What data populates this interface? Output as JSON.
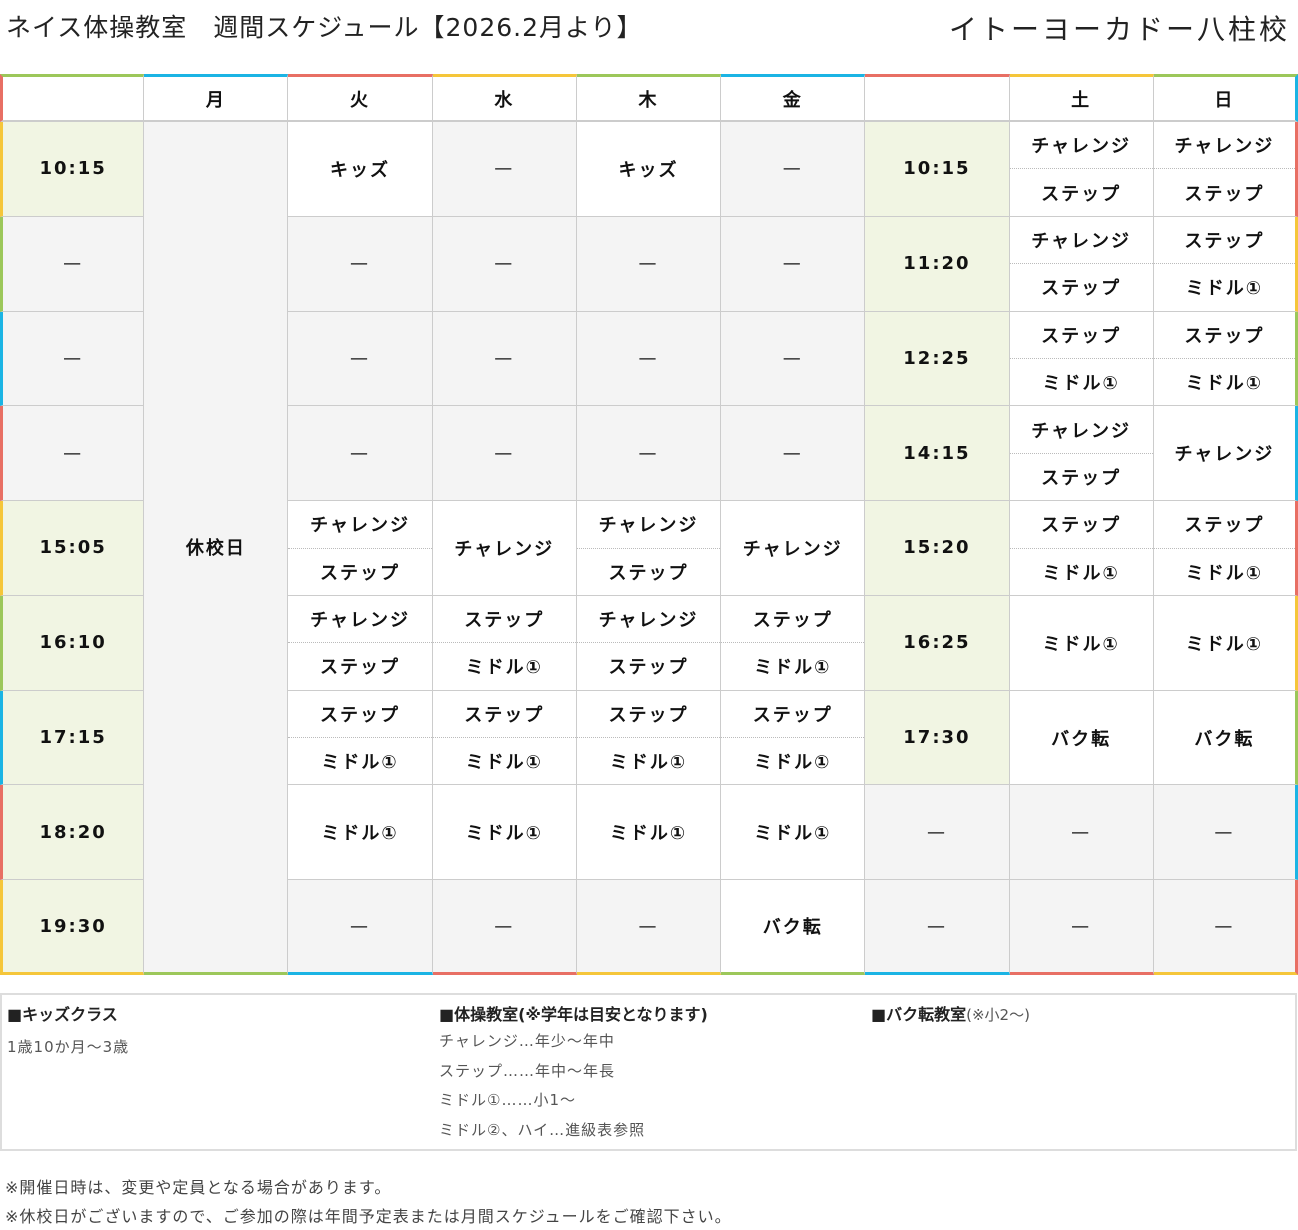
{
  "header": {
    "title": "ネイス体操教室　週間スケジュール【2026.2月より】",
    "school": "イトーヨーカドー八柱校"
  },
  "colors": {
    "time_bg": "#f1f5e3",
    "empty_bg": "#f4f4f4",
    "accents": [
      "#9cc75a",
      "#1bb4e4",
      "#e86f64",
      "#f5c63a"
    ]
  },
  "table": {
    "days": [
      "",
      "月",
      "火",
      "水",
      "木",
      "金",
      "",
      "土",
      "日"
    ],
    "monday": "休校日",
    "rows": [
      {
        "time_l": "10:15",
        "tue": [
          "キッズ"
        ],
        "wed": [
          "—"
        ],
        "thu": [
          "キッズ"
        ],
        "fri": [
          "—"
        ],
        "time_r": "10:15",
        "sat": [
          "チャレンジ",
          "ステップ"
        ],
        "sun": [
          "チャレンジ",
          "ステップ"
        ]
      },
      {
        "time_l": "—",
        "tue": [
          "—"
        ],
        "wed": [
          "—"
        ],
        "thu": [
          "—"
        ],
        "fri": [
          "—"
        ],
        "time_r": "11:20",
        "sat": [
          "チャレンジ",
          "ステップ"
        ],
        "sun": [
          "ステップ",
          "ミドル①"
        ]
      },
      {
        "time_l": "—",
        "tue": [
          "—"
        ],
        "wed": [
          "—"
        ],
        "thu": [
          "—"
        ],
        "fri": [
          "—"
        ],
        "time_r": "12:25",
        "sat": [
          "ステップ",
          "ミドル①"
        ],
        "sun": [
          "ステップ",
          "ミドル①"
        ]
      },
      {
        "time_l": "—",
        "tue": [
          "—"
        ],
        "wed": [
          "—"
        ],
        "thu": [
          "—"
        ],
        "fri": [
          "—"
        ],
        "time_r": "14:15",
        "sat": [
          "チャレンジ",
          "ステップ"
        ],
        "sun": [
          "チャレンジ"
        ]
      },
      {
        "time_l": "15:05",
        "tue": [
          "チャレンジ",
          "ステップ"
        ],
        "wed": [
          "チャレンジ"
        ],
        "thu": [
          "チャレンジ",
          "ステップ"
        ],
        "fri": [
          "チャレンジ"
        ],
        "time_r": "15:20",
        "sat": [
          "ステップ",
          "ミドル①"
        ],
        "sun": [
          "ステップ",
          "ミドル①"
        ]
      },
      {
        "time_l": "16:10",
        "tue": [
          "チャレンジ",
          "ステップ"
        ],
        "wed": [
          "ステップ",
          "ミドル①"
        ],
        "thu": [
          "チャレンジ",
          "ステップ"
        ],
        "fri": [
          "ステップ",
          "ミドル①"
        ],
        "time_r": "16:25",
        "sat": [
          "ミドル①"
        ],
        "sun": [
          "ミドル①"
        ]
      },
      {
        "time_l": "17:15",
        "tue": [
          "ステップ",
          "ミドル①"
        ],
        "wed": [
          "ステップ",
          "ミドル①"
        ],
        "thu": [
          "ステップ",
          "ミドル①"
        ],
        "fri": [
          "ステップ",
          "ミドル①"
        ],
        "time_r": "17:30",
        "sat": [
          "バク転"
        ],
        "sun": [
          "バク転"
        ]
      },
      {
        "time_l": "18:20",
        "tue": [
          "ミドル①"
        ],
        "wed": [
          "ミドル①"
        ],
        "thu": [
          "ミドル①"
        ],
        "fri": [
          "ミドル①"
        ],
        "time_r": "—",
        "sat": [
          "—"
        ],
        "sun": [
          "—"
        ]
      },
      {
        "time_l": "19:30",
        "tue": [
          "—"
        ],
        "wed": [
          "—"
        ],
        "thu": [
          "—"
        ],
        "fri": [
          "バク転"
        ],
        "time_r": "—",
        "sat": [
          "—"
        ],
        "sun": [
          "—"
        ]
      }
    ]
  },
  "legend": {
    "kids": {
      "title": "■キッズクラス",
      "lines": [
        "1歳10か月～3歳"
      ]
    },
    "gym": {
      "title": "■体操教室(※学年は目安となります)",
      "lines": [
        "チャレンジ…年少～年中",
        "ステップ……年中～年長",
        "ミドル①……小1～",
        "ミドル②、ハイ…進級表参照"
      ]
    },
    "back": {
      "title": "■バク転教室",
      "note": "(※小2～)"
    }
  },
  "notes": [
    "※開催日時は、変更や定員となる場合があります。",
    "※休校日がございますので、ご参加の際は年間予定表または月間スケジュールをご確認下さい。"
  ]
}
